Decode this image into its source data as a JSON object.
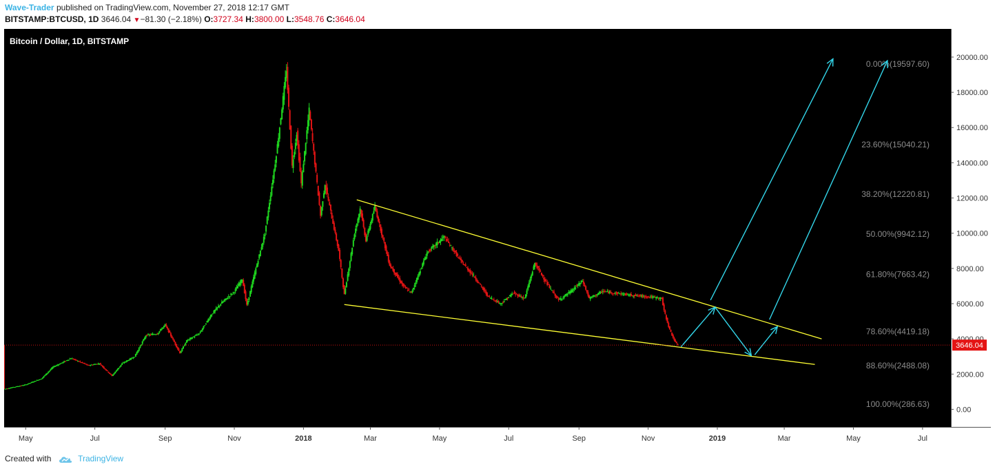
{
  "header": {
    "author": "Wave-Trader",
    "published_text": "published on TradingView.com, November 27, 2018 12:17 GMT",
    "symbol": "BITSTAMP:BTCUSD, 1D",
    "last_price": "3646.04",
    "change": "−81.30 (−2.18%)",
    "open_label": "O:",
    "open": "3727.34",
    "high_label": "H:",
    "high": "3800.00",
    "low_label": "L:",
    "low": "3548.76",
    "close_label": "C:",
    "close": "3646.04"
  },
  "footer": {
    "created_with": "Created with",
    "brand": "TradingView",
    "brand_icon": "tradingview-cloud-icon"
  },
  "colors": {
    "background": "#000000",
    "up_candle": "#1fd81f",
    "down_candle": "#e41414",
    "trendline": "#ffff33",
    "arrow": "#33d6ea",
    "fib_text": "#8c8c8c",
    "price_line": "#cc1111",
    "price_badge": "#e41414",
    "axis_bg": "#ffffff"
  },
  "chart_data": {
    "type": "candlestick",
    "title": "Bitcoin / Dollar, 1D, BITSTAMP",
    "ylim": [
      -1000,
      21600
    ],
    "x_tick_labels": [
      "May",
      "Jul",
      "Sep",
      "Nov",
      "2018",
      "Mar",
      "May",
      "Jul",
      "Sep",
      "Nov",
      "2019",
      "Mar",
      "May",
      "Jul"
    ],
    "x_ticks": [
      "2017-05-01",
      "2017-07-01",
      "2017-09-01",
      "2017-11-01",
      "2018-01-01",
      "2018-03-01",
      "2018-05-01",
      "2018-07-01",
      "2018-09-01",
      "2018-11-01",
      "2019-01-01",
      "2019-03-01",
      "2019-05-01",
      "2019-07-01"
    ],
    "bold_ticks": [
      "2018",
      "2019"
    ],
    "y_tick_labels": [
      "0.00",
      "2000.00",
      "4000.00",
      "6000.00",
      "8000.00",
      "10000.00",
      "12000.00",
      "14000.00",
      "16000.00",
      "18000.00",
      "20000.00"
    ],
    "y_ticks": [
      0,
      2000,
      4000,
      6000,
      8000,
      10000,
      12000,
      14000,
      16000,
      18000,
      20000
    ],
    "last_price": 3646.04,
    "last_price_label": "3646.04",
    "price_path": [
      [
        "2017-04-12",
        1150
      ],
      [
        "2017-05-01",
        1400
      ],
      [
        "2017-05-15",
        1750
      ],
      [
        "2017-05-25",
        2400
      ],
      [
        "2017-06-10",
        2900
      ],
      [
        "2017-06-25",
        2500
      ],
      [
        "2017-07-05",
        2600
      ],
      [
        "2017-07-16",
        1900
      ],
      [
        "2017-07-25",
        2600
      ],
      [
        "2017-08-05",
        3000
      ],
      [
        "2017-08-15",
        4200
      ],
      [
        "2017-08-25",
        4300
      ],
      [
        "2017-09-01",
        4800
      ],
      [
        "2017-09-14",
        3200
      ],
      [
        "2017-09-20",
        3900
      ],
      [
        "2017-10-01",
        4300
      ],
      [
        "2017-10-12",
        5400
      ],
      [
        "2017-10-20",
        6000
      ],
      [
        "2017-11-01",
        6700
      ],
      [
        "2017-11-08",
        7400
      ],
      [
        "2017-11-12",
        5900
      ],
      [
        "2017-11-20",
        8000
      ],
      [
        "2017-11-28",
        10000
      ],
      [
        "2017-12-07",
        14000
      ],
      [
        "2017-12-10",
        15500
      ],
      [
        "2017-12-17",
        19300
      ],
      [
        "2017-12-22",
        13800
      ],
      [
        "2017-12-26",
        15700
      ],
      [
        "2017-12-30",
        12800
      ],
      [
        "2018-01-06",
        17000
      ],
      [
        "2018-01-16",
        11000
      ],
      [
        "2018-01-20",
        12800
      ],
      [
        "2018-02-01",
        9000
      ],
      [
        "2018-02-06",
        6500
      ],
      [
        "2018-02-15",
        10000
      ],
      [
        "2018-02-20",
        11400
      ],
      [
        "2018-02-25",
        9600
      ],
      [
        "2018-03-05",
        11500
      ],
      [
        "2018-03-18",
        8200
      ],
      [
        "2018-03-30",
        7000
      ],
      [
        "2018-04-06",
        6600
      ],
      [
        "2018-04-20",
        8900
      ],
      [
        "2018-05-05",
        9800
      ],
      [
        "2018-05-20",
        8400
      ],
      [
        "2018-06-01",
        7500
      ],
      [
        "2018-06-13",
        6400
      ],
      [
        "2018-06-24",
        6000
      ],
      [
        "2018-07-05",
        6600
      ],
      [
        "2018-07-15",
        6300
      ],
      [
        "2018-07-24",
        8300
      ],
      [
        "2018-08-05",
        7000
      ],
      [
        "2018-08-14",
        6200
      ],
      [
        "2018-08-25",
        6700
      ],
      [
        "2018-09-04",
        7300
      ],
      [
        "2018-09-10",
        6300
      ],
      [
        "2018-09-22",
        6700
      ],
      [
        "2018-10-15",
        6500
      ],
      [
        "2018-11-01",
        6400
      ],
      [
        "2018-11-13",
        6300
      ],
      [
        "2018-11-15",
        5600
      ],
      [
        "2018-11-20",
        4500
      ],
      [
        "2018-11-25",
        3800
      ],
      [
        "2018-11-27",
        3646
      ]
    ],
    "trendlines": [
      {
        "name": "upper",
        "from": [
          "2018-02-17",
          11900
        ],
        "to": [
          "2019-04-03",
          4000
        ]
      },
      {
        "name": "lower",
        "from": [
          "2018-02-06",
          5950
        ],
        "to": [
          "2019-03-28",
          2550
        ]
      }
    ],
    "projection_arrows": [
      {
        "from": [
          "2018-11-30",
          3550
        ],
        "to": [
          "2018-12-30",
          5800
        ]
      },
      {
        "from": [
          "2018-12-30",
          5800
        ],
        "to": [
          "2019-01-31",
          3050
        ]
      },
      {
        "from": [
          "2019-02-03",
          3100
        ],
        "to": [
          "2019-02-23",
          4700
        ]
      },
      {
        "from": [
          "2018-12-26",
          6200
        ],
        "to": [
          "2019-04-13",
          19900
        ]
      },
      {
        "from": [
          "2019-02-16",
          5100
        ],
        "to": [
          "2019-05-31",
          19800
        ]
      }
    ],
    "fibonacci_levels": [
      {
        "value": 19597.6,
        "label": "0.00%(19597.60)"
      },
      {
        "value": 15040.21,
        "label": "23.60%(15040.21)"
      },
      {
        "value": 12220.81,
        "label": "38.20%(12220.81)"
      },
      {
        "value": 9942.12,
        "label": "50.00%(9942.12)"
      },
      {
        "value": 7663.42,
        "label": "61.80%(7663.42)"
      },
      {
        "value": 4419.18,
        "label": "78.60%(4419.18)"
      },
      {
        "value": 2488.08,
        "label": "88.60%(2488.08)"
      },
      {
        "value": 286.63,
        "label": "100.00%(286.63)"
      }
    ]
  }
}
